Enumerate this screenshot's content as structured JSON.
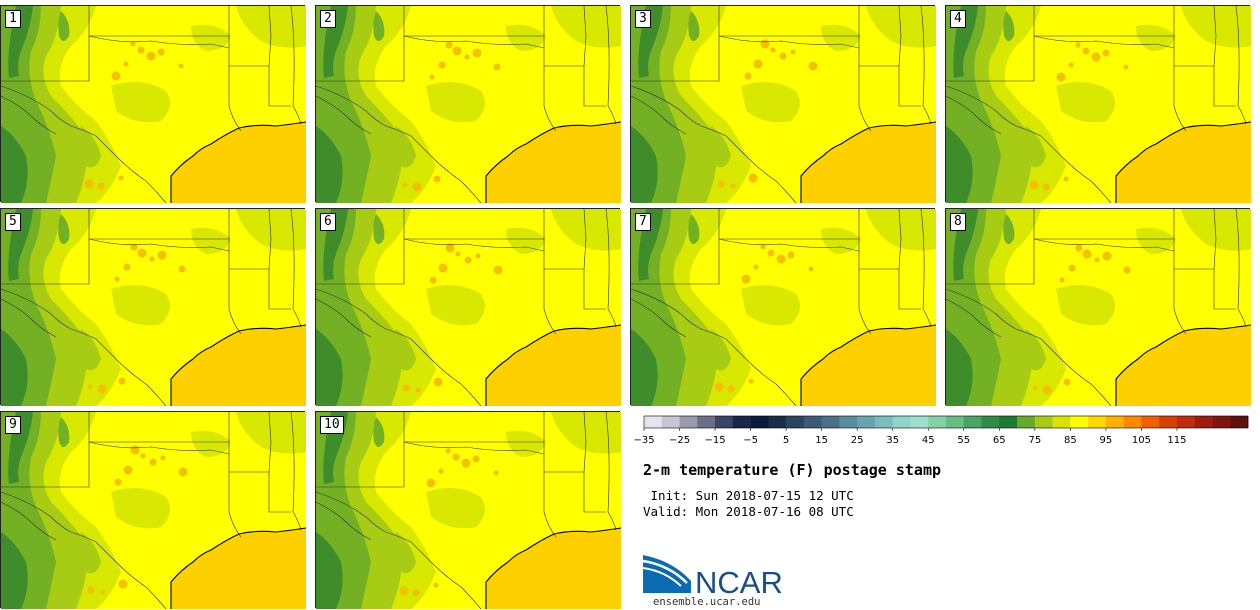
{
  "panels": [
    "1",
    "2",
    "3",
    "4",
    "5",
    "6",
    "7",
    "8",
    "9",
    "10"
  ],
  "colorbar": {
    "ticks": [
      "−35",
      "−25",
      "−15",
      "−5",
      "5",
      "15",
      "25",
      "35",
      "45",
      "55",
      "65",
      "75",
      "85",
      "95",
      "105",
      "115"
    ],
    "colors": [
      "#e4e4ec",
      "#c6c6d4",
      "#9a9aac",
      "#6c6e86",
      "#3a4464",
      "#1a2648",
      "#0a1a3a",
      "#1a2c4a",
      "#2c4460",
      "#3c5a76",
      "#4a7088",
      "#5a8c9c",
      "#6aa4ac",
      "#7cbcbc",
      "#8ed6cc",
      "#9ee0cc",
      "#86d0a4",
      "#68bc84",
      "#4aa464",
      "#2e8c44",
      "#1e7a34",
      "#68a82c",
      "#a4cc14",
      "#d8e400",
      "#ffff00",
      "#ffd800",
      "#ffb000",
      "#ff8800",
      "#f06000",
      "#d84000",
      "#c02a10",
      "#a01c10",
      "#801410",
      "#601010"
    ]
  },
  "title": "2-m temperature (F) postage stamp",
  "init_line": " Init: Sun 2018-07-15 12 UTC",
  "valid_line": "Valid: Mon 2018-07-16 08 UTC",
  "logo": {
    "text": "NCAR",
    "url": "ensemble.ucar.edu"
  },
  "map_colors": {
    "background": "#ffff00",
    "gulf": "#ffd000",
    "dark_green": "#3e8c2a",
    "med_green": "#74b024",
    "light_green": "#a8cc14",
    "yellow_green": "#d8e800",
    "orange": "#f4c000",
    "border": "#333333"
  }
}
